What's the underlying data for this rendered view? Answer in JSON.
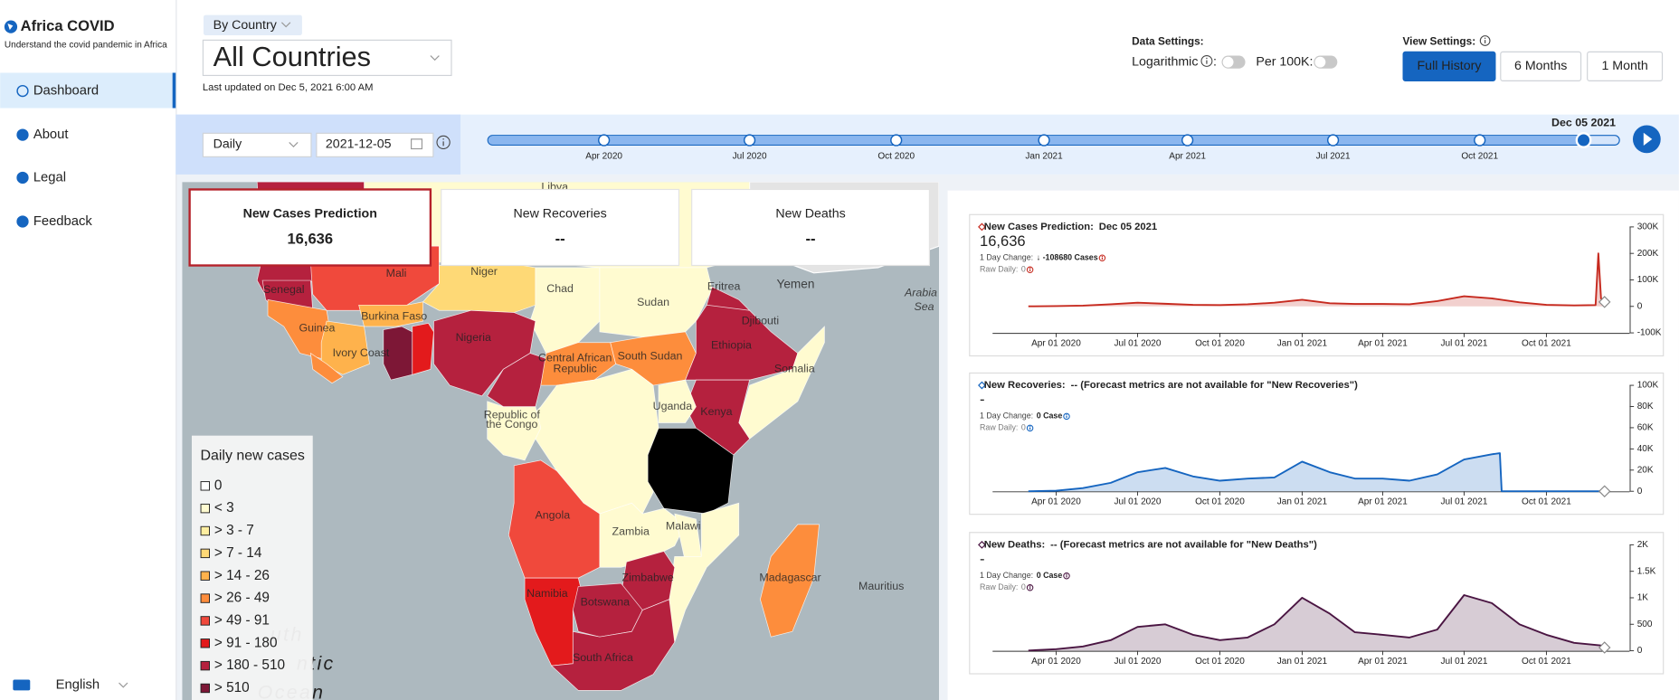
{
  "sidebar": {
    "brand": "Africa COVID",
    "tagline": "Understand the covid pandemic in Africa",
    "nav": [
      "Dashboard",
      "About",
      "Legal",
      "Feedback"
    ],
    "active_nav": 0,
    "language": "English"
  },
  "header": {
    "scope": "By Country",
    "region": "All Countries",
    "last_updated": "Last updated on Dec 5, 2021 6:00 AM"
  },
  "data_settings": {
    "title": "Data Settings:",
    "log_label": "Logarithmic",
    "log_suffix": ":",
    "per100k_label": "Per 100K:",
    "logarithmic": false,
    "per_100k": false
  },
  "view_settings": {
    "title": "View Settings:",
    "buttons": [
      "Full History",
      "6 Months",
      "1 Month"
    ],
    "active": 0
  },
  "timeline": {
    "frequency": "Daily",
    "date": "2021-12-05",
    "current": "Dec 05 2021",
    "ticks": [
      "Apr 2020",
      "Jul 2020",
      "Oct 2020",
      "Jan 2021",
      "Apr 2021",
      "Jul 2021",
      "Oct 2021"
    ]
  },
  "cards": [
    {
      "title": "New Cases Prediction",
      "value": "16,636"
    },
    {
      "title": "New Recoveries",
      "value": "--"
    },
    {
      "title": "New Deaths",
      "value": "--"
    }
  ],
  "active_card": 0,
  "legend": {
    "title": "Daily new cases",
    "items": [
      {
        "label": "0",
        "color": "#ffffff"
      },
      {
        "label": "< 3",
        "color": "#fffbd0"
      },
      {
        "label": "> 3 - 7",
        "color": "#feeea0"
      },
      {
        "label": "> 7 - 14",
        "color": "#fed976"
      },
      {
        "label": "> 14 - 26",
        "color": "#feb24c"
      },
      {
        "label": "> 26 - 49",
        "color": "#fd8d3c"
      },
      {
        "label": "> 49 - 91",
        "color": "#f0493c"
      },
      {
        "label": "> 91 - 180",
        "color": "#e31a1c"
      },
      {
        "label": "> 180 - 510",
        "color": "#b5213e"
      },
      {
        "label": "> 510",
        "color": "#7d1736"
      }
    ]
  },
  "map": {
    "labels": [
      "Libya",
      "Mali",
      "Niger",
      "Chad",
      "Sudan",
      "Senegal",
      "Eritrea",
      "Yemen",
      "Arabia",
      "Sea",
      "Burkina Faso",
      "Guinea",
      "Djibouti",
      "Nigeria",
      "Ethiopia",
      "Ivory Coast",
      "Central African",
      "Republic",
      "South Sudan",
      "Somalia",
      "Uganda",
      "Kenya",
      "Republic of",
      "the Congo",
      "Angola",
      "Zambia",
      "Malawi",
      "Zimbabwe",
      "Madagascar",
      "Mauritius",
      "Namibia",
      "Botswana",
      "South Africa",
      "uth",
      "ntic",
      "Ocean"
    ]
  },
  "chart_data": [
    {
      "type": "line",
      "title": "New Cases Prediction:",
      "date": "Dec 05 2021",
      "value": "16,636",
      "change_label": "1 Day Change:",
      "change": "↓ -108680 Cases",
      "raw_label": "Raw Daily:",
      "raw": "0",
      "color": "#c62a1f",
      "x": [
        "2020-03-01",
        "2020-04-01",
        "2020-05-01",
        "2020-06-01",
        "2020-07-01",
        "2020-08-01",
        "2020-09-01",
        "2020-10-01",
        "2020-11-01",
        "2020-12-01",
        "2021-01-01",
        "2021-02-01",
        "2021-03-01",
        "2021-04-01",
        "2021-05-01",
        "2021-06-01",
        "2021-07-01",
        "2021-08-01",
        "2021-09-01",
        "2021-10-01",
        "2021-11-01",
        "2021-11-25",
        "2021-11-28",
        "2021-12-01",
        "2021-12-05"
      ],
      "values": [
        100,
        1000,
        3000,
        8000,
        14000,
        10000,
        6000,
        5000,
        8000,
        14000,
        25000,
        12000,
        9000,
        9000,
        8000,
        20000,
        38000,
        30000,
        15000,
        6000,
        4000,
        5000,
        200000,
        30000,
        16636
      ],
      "xlim": [
        "2020-01-21",
        "2022-01-02"
      ],
      "xticks": [
        "Apr 01 2020",
        "Jul 01 2020",
        "Oct 01 2020",
        "Jan 01 2021",
        "Apr 01 2021",
        "Jul 01 2021",
        "Oct 01 2021"
      ],
      "ylim": [
        -100000,
        300000
      ],
      "yticks": [
        {
          "value": -100000,
          "label": "-100K"
        },
        0,
        {
          "value": 100000,
          "label": "100K"
        },
        {
          "value": 200000,
          "label": "200K"
        },
        {
          "value": 300000,
          "label": "300K"
        }
      ]
    },
    {
      "type": "line",
      "title": "New Recoveries:",
      "note": "-- (Forecast metrics are not available for \"New Recoveries\")",
      "value": "-",
      "change_label": "1 Day Change:",
      "change": "0 Case",
      "raw_label": "Raw Daily:",
      "raw": "0",
      "color": "#1565c0",
      "x": [
        "2020-03-01",
        "2020-04-01",
        "2020-05-01",
        "2020-06-01",
        "2020-07-01",
        "2020-08-01",
        "2020-09-01",
        "2020-10-01",
        "2020-11-01",
        "2020-12-01",
        "2021-01-01",
        "2021-02-01",
        "2021-03-01",
        "2021-04-01",
        "2021-05-01",
        "2021-06-01",
        "2021-07-01",
        "2021-08-01",
        "2021-08-10",
        "2021-08-12",
        "2021-09-01",
        "2021-10-01",
        "2021-11-01",
        "2021-12-01",
        "2021-12-05"
      ],
      "values": [
        0,
        500,
        3000,
        8000,
        18000,
        22000,
        14000,
        10000,
        12000,
        13000,
        28000,
        18000,
        12000,
        12000,
        10000,
        16000,
        30000,
        35000,
        36000,
        0,
        0,
        0,
        0,
        0,
        0
      ],
      "xlim": [
        "2020-01-21",
        "2022-01-02"
      ],
      "xticks": [
        "Apr 01 2020",
        "Jul 01 2020",
        "Oct 01 2020",
        "Jan 01 2021",
        "Apr 01 2021",
        "Jul 01 2021",
        "Oct 01 2021"
      ],
      "ylim": [
        0,
        100000
      ],
      "yticks": [
        0,
        {
          "value": 20000,
          "label": "20K"
        },
        {
          "value": 40000,
          "label": "40K"
        },
        {
          "value": 60000,
          "label": "60K"
        },
        {
          "value": 80000,
          "label": "80K"
        },
        {
          "value": 100000,
          "label": "100K"
        }
      ]
    },
    {
      "type": "line",
      "title": "New Deaths:",
      "note": "-- (Forecast metrics are not available for \"New Deaths\")",
      "value": "-",
      "change_label": "1 Day Change:",
      "change": "0 Case",
      "raw_label": "Raw Daily:",
      "raw": "0",
      "color": "#4a1542",
      "x": [
        "2020-03-01",
        "2020-04-01",
        "2020-05-01",
        "2020-06-01",
        "2020-07-01",
        "2020-08-01",
        "2020-09-01",
        "2020-10-01",
        "2020-11-01",
        "2020-12-01",
        "2021-01-01",
        "2021-02-01",
        "2021-03-01",
        "2021-04-01",
        "2021-05-01",
        "2021-06-01",
        "2021-07-01",
        "2021-08-01",
        "2021-09-01",
        "2021-10-01",
        "2021-11-01",
        "2021-12-01",
        "2021-12-05"
      ],
      "values": [
        5,
        30,
        80,
        200,
        450,
        500,
        300,
        200,
        250,
        500,
        1000,
        700,
        350,
        300,
        250,
        400,
        1050,
        900,
        500,
        300,
        150,
        100,
        60
      ],
      "xlim": [
        "2020-01-21",
        "2022-01-02"
      ],
      "xticks": [
        "Apr 01 2020",
        "Jul 01 2020",
        "Oct 01 2020",
        "Jan 01 2021",
        "Apr 01 2021",
        "Jul 01 2021",
        "Oct 01 2021"
      ],
      "ylim": [
        0,
        2000
      ],
      "yticks": [
        0,
        500,
        {
          "value": 1000,
          "label": "1K"
        },
        {
          "value": 1500,
          "label": "1.5K"
        },
        {
          "value": 2000,
          "label": "2K"
        }
      ]
    }
  ]
}
